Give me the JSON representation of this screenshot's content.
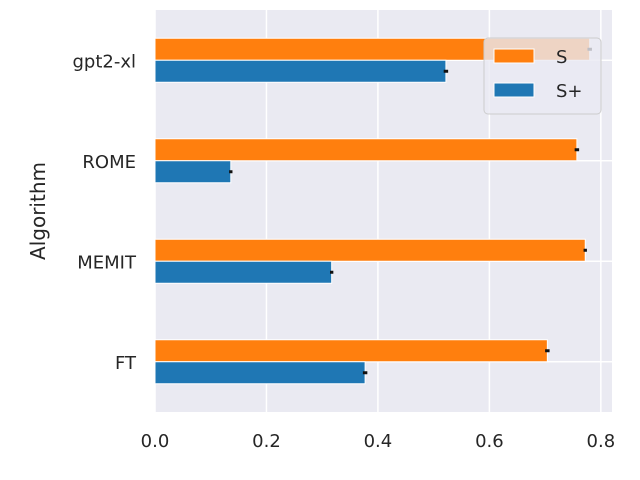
{
  "chart_data": {
    "type": "bar",
    "orientation": "horizontal",
    "categories": [
      "gpt2-xl",
      "ROME",
      "MEMIT",
      "FT"
    ],
    "series": [
      {
        "name": "S",
        "values": [
          0.78,
          0.757,
          0.772,
          0.704
        ],
        "errors": [
          0.004,
          0.004,
          0.003,
          0.004
        ],
        "color": "#ff7f0e"
      },
      {
        "name": "S+",
        "values": [
          0.522,
          0.136,
          0.317,
          0.377
        ],
        "errors": [
          0.004,
          0.003,
          0.003,
          0.004
        ],
        "color": "#1f77b4"
      }
    ],
    "xlim": [
      0.0,
      0.82
    ],
    "xticks": [
      "0.0",
      "0.2",
      "0.4",
      "0.6",
      "0.8"
    ],
    "xlabel": "",
    "ylabel": "Algorithm",
    "title": "",
    "grid": true,
    "legend_position": "top-right",
    "background": "#eaeaf2"
  }
}
